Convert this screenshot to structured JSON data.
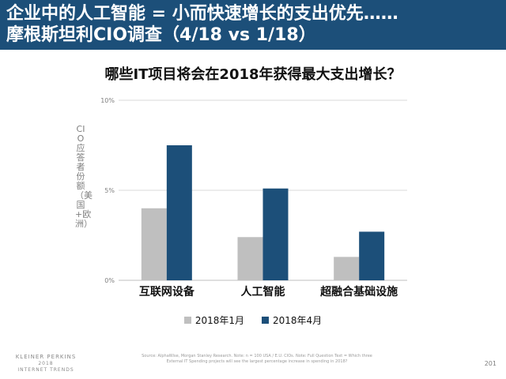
{
  "header": {
    "line1": "企业中的人工智能 = 小而快速增长的支出优先……",
    "line2": "摩根斯坦利CIO调查（4/18 vs 1/18）"
  },
  "footer": {
    "source": "Source: AlphaWise, Morgan Stanley Research. Note: n = 100 USA / E.U. CIOs. Note: Full Question Text = Which three External IT Spending projects will see the largest percentage increase in spending in 2018?",
    "page": "201",
    "logo_line1": "KLEINER PERKINS",
    "logo_line2": "2018",
    "logo_line3": "INTERNET TRENDS"
  },
  "colors": {
    "header_bg": "#1c4f79",
    "series_jan": "#bfbfbf",
    "series_apr": "#1c4f79"
  },
  "chart_data": {
    "type": "bar",
    "title": "哪些IT项目将会在2018年获得最大支出增长？",
    "ylabel": "CIO应答者份额（美国+欧洲）",
    "xlabel": "",
    "categories": [
      "互联网设备",
      "人工智能",
      "超融合基础设施"
    ],
    "series": [
      {
        "name": "2018年1月",
        "values": [
          4.0,
          2.4,
          1.3
        ]
      },
      {
        "name": "2018年4月",
        "values": [
          7.5,
          5.1,
          2.7
        ]
      }
    ],
    "ylim": [
      0,
      10
    ],
    "yticks": [
      "0%",
      "5%",
      "10%"
    ],
    "ytick_values": [
      0,
      5,
      10
    ],
    "grid": true,
    "legend_position": "bottom"
  }
}
